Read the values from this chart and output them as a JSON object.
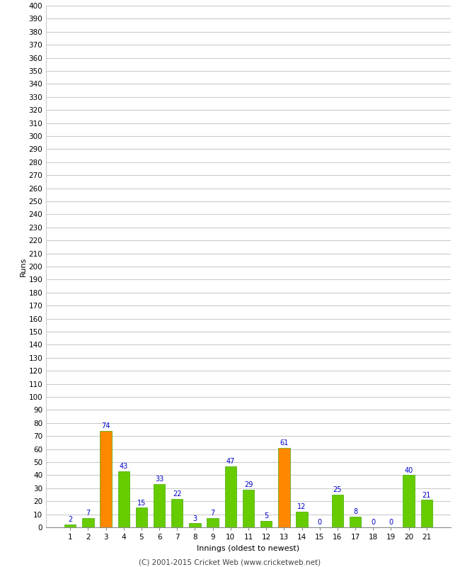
{
  "innings": [
    1,
    2,
    3,
    4,
    5,
    6,
    7,
    8,
    9,
    10,
    11,
    12,
    13,
    14,
    15,
    16,
    17,
    18,
    19,
    20,
    21
  ],
  "values": [
    2,
    7,
    74,
    43,
    15,
    33,
    22,
    3,
    7,
    47,
    29,
    5,
    61,
    12,
    0,
    25,
    8,
    0,
    0,
    40,
    21
  ],
  "colors": [
    "#66cc00",
    "#66cc00",
    "#ff8800",
    "#66cc00",
    "#66cc00",
    "#66cc00",
    "#66cc00",
    "#66cc00",
    "#66cc00",
    "#66cc00",
    "#66cc00",
    "#66cc00",
    "#ff8800",
    "#66cc00",
    "#66cc00",
    "#66cc00",
    "#66cc00",
    "#66cc00",
    "#66cc00",
    "#66cc00",
    "#66cc00"
  ],
  "xlabel": "Innings (oldest to newest)",
  "ylabel": "Runs",
  "ylim": [
    0,
    400
  ],
  "ytick_step": 10,
  "background_color": "#ffffff",
  "grid_color": "#cccccc",
  "label_color": "#0000cc",
  "footer": "(C) 2001-2015 Cricket Web (www.cricketweb.net)",
  "bar_edge_color": "#44aa00",
  "tick_fontsize": 7.5,
  "label_fontsize": 8,
  "bar_label_fontsize": 7,
  "footer_fontsize": 7.5
}
